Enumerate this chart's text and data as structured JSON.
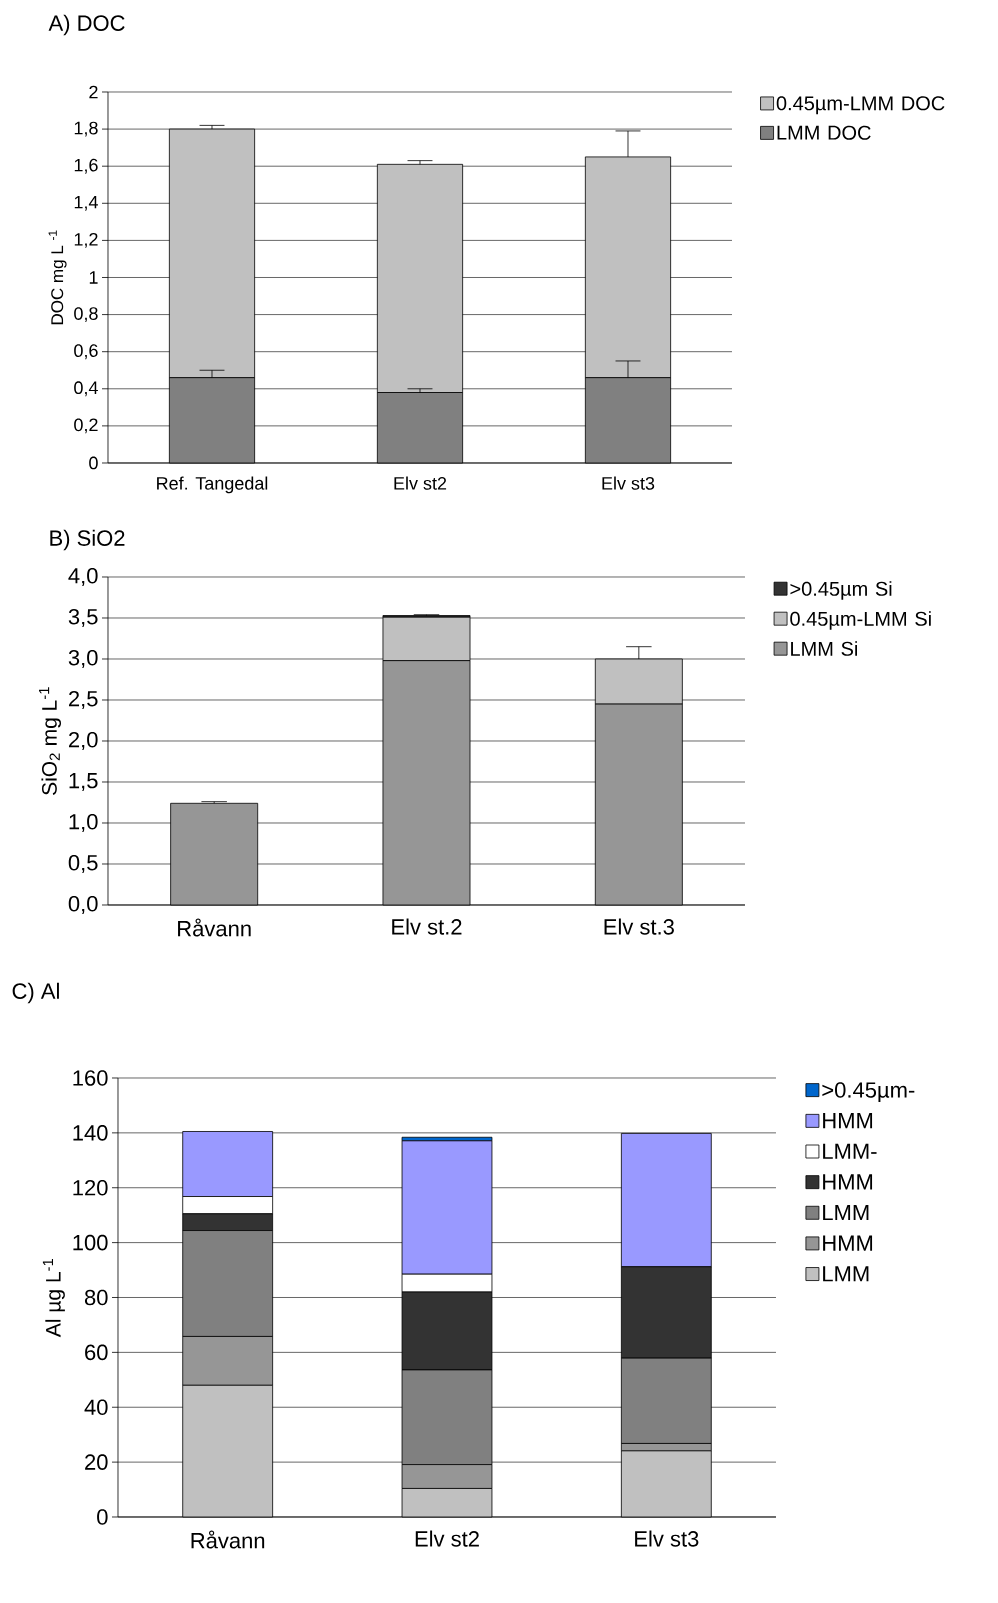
{
  "chart_data": [
    {
      "type": "bar",
      "title": "A) DOC",
      "ylabel": "DOC mg L $^{-1}$",
      "stacked": true,
      "categories": [
        "Ref. Tangedal",
        "Elv st2",
        "Elv st3"
      ],
      "ylim": [
        0,
        2
      ],
      "yticks": [
        0,
        {
          "value": 0.2,
          "label": "0,2"
        },
        {
          "value": 0.4,
          "label": "0,4"
        },
        {
          "value": 0.6,
          "label": "0,6"
        },
        {
          "value": 0.8,
          "label": "0,8"
        },
        1,
        {
          "value": 1.2,
          "label": "1,2"
        },
        {
          "value": 1.4,
          "label": "1,4"
        },
        {
          "value": 1.6,
          "label": "1,6"
        },
        {
          "value": 1.8,
          "label": "1,8"
        },
        2
      ],
      "grid": "y",
      "legend": "right",
      "series": [
        {
          "name": "LMM DOC",
          "color": "#808080",
          "values": [
            0.46,
            0.38,
            0.46
          ],
          "errors": [
            0.04,
            0.02,
            0.09
          ]
        },
        {
          "name": "0.45µm-LMM DOC",
          "color": "#c0c0c0",
          "values": [
            1.34,
            1.23,
            1.19
          ],
          "errors": [
            0.02,
            0.02,
            0.14
          ]
        }
      ]
    },
    {
      "type": "bar",
      "title": "B) SiO2",
      "ylabel": "SiO$_{2}$  mg L$^{-1}$",
      "stacked": true,
      "categories": [
        "Råvann",
        "Elv st.2",
        "Elv st.3"
      ],
      "ylim": [
        0,
        4
      ],
      "yticks": [
        {
          "value": 0,
          "label": "0,0"
        },
        {
          "value": 0.5,
          "label": "0,5"
        },
        {
          "value": 1,
          "label": "1,0"
        },
        {
          "value": 1.5,
          "label": "1,5"
        },
        {
          "value": 2,
          "label": "2,0"
        },
        {
          "value": 2.5,
          "label": "2,5"
        },
        {
          "value": 3,
          "label": "3,0"
        },
        {
          "value": 3.5,
          "label": "3,5"
        },
        {
          "value": 4,
          "label": "4,0"
        }
      ],
      "grid": "y",
      "legend": "right",
      "series": [
        {
          "name": "LMM Si",
          "color": "#969696",
          "values": [
            1.24,
            2.98,
            2.45
          ],
          "errors": [
            0.02,
            null,
            null
          ]
        },
        {
          "name": "0.45µm-LMM Si",
          "color": "#c0c0c0",
          "values": [
            0,
            0.53,
            0.55
          ],
          "errors": [
            null,
            null,
            0.15
          ]
        },
        {
          "name": ">0.45µm Si",
          "color": "#333333",
          "values": [
            0,
            0.02,
            0
          ],
          "errors": [
            null,
            0.01,
            null
          ]
        }
      ]
    },
    {
      "type": "bar",
      "title": "C) Al",
      "ylabel": "Al  µg L$^{-1}$",
      "stacked": true,
      "categories": [
        "Råvann",
        "Elv st2",
        "Elv st3"
      ],
      "ylim": [
        0,
        160
      ],
      "yticks": [
        0,
        20,
        40,
        60,
        80,
        100,
        120,
        140,
        160
      ],
      "grid": "y",
      "legend": "right",
      "series": [
        {
          "name": "LMM",
          "color": "#c0c0c0",
          "values": [
            48.0,
            10.4,
            24.1
          ]
        },
        {
          "name": "HMM",
          "color": "#969696",
          "values": [
            17.8,
            8.7,
            2.7
          ]
        },
        {
          "name": "LMM",
          "color": "#808080",
          "values": [
            38.6,
            34.5,
            31.1
          ]
        },
        {
          "name": "HMM",
          "color": "#333333",
          "values": [
            6.1,
            28.4,
            33.3
          ]
        },
        {
          "name": "LMM-",
          "color": "#ffffff",
          "values": [
            6.3,
            6.5,
            0
          ]
        },
        {
          "name": "HMM",
          "color": "#9999ff",
          "values": [
            23.7,
            48.6,
            48.6
          ]
        },
        {
          "name": ">0.45µm-",
          "color": "#0066cc",
          "values": [
            0,
            1.3,
            0
          ]
        }
      ]
    }
  ]
}
